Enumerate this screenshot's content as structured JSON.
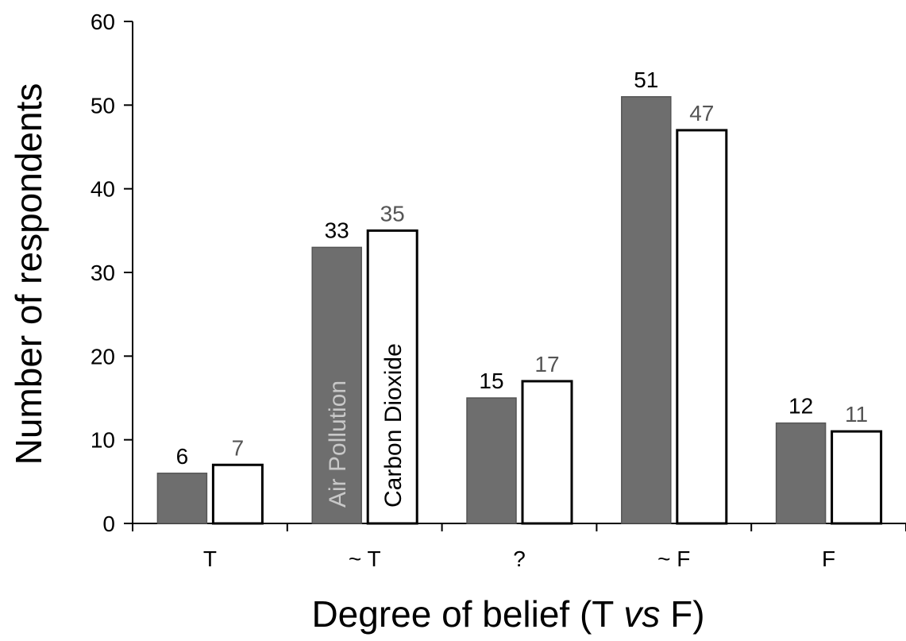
{
  "chart_data": {
    "type": "bar",
    "xlabel": "Degree of belief (T vs F)",
    "xlabel_parts": {
      "pre": "Degree of belief (T ",
      "italic": "vs",
      "post": " F)"
    },
    "ylabel": "Number of respondents",
    "ylim": [
      0,
      60
    ],
    "yticks": [
      0,
      10,
      20,
      30,
      40,
      50,
      60
    ],
    "categories": [
      "T",
      "~ T",
      "?",
      "~ F",
      "F"
    ],
    "series": [
      {
        "name": "Air Pollution",
        "values": [
          6,
          33,
          15,
          51,
          12
        ],
        "color": "#6e6e6e",
        "label_color": "#000000",
        "inbar_color": "#c8c8c8"
      },
      {
        "name": "Carbon Dioxide",
        "values": [
          7,
          35,
          17,
          47,
          11
        ],
        "color": "#ffffff",
        "label_color": "#555555",
        "inbar_color": "#000000"
      }
    ],
    "series_label_category_index": 1,
    "grid": false,
    "legend": "none"
  }
}
